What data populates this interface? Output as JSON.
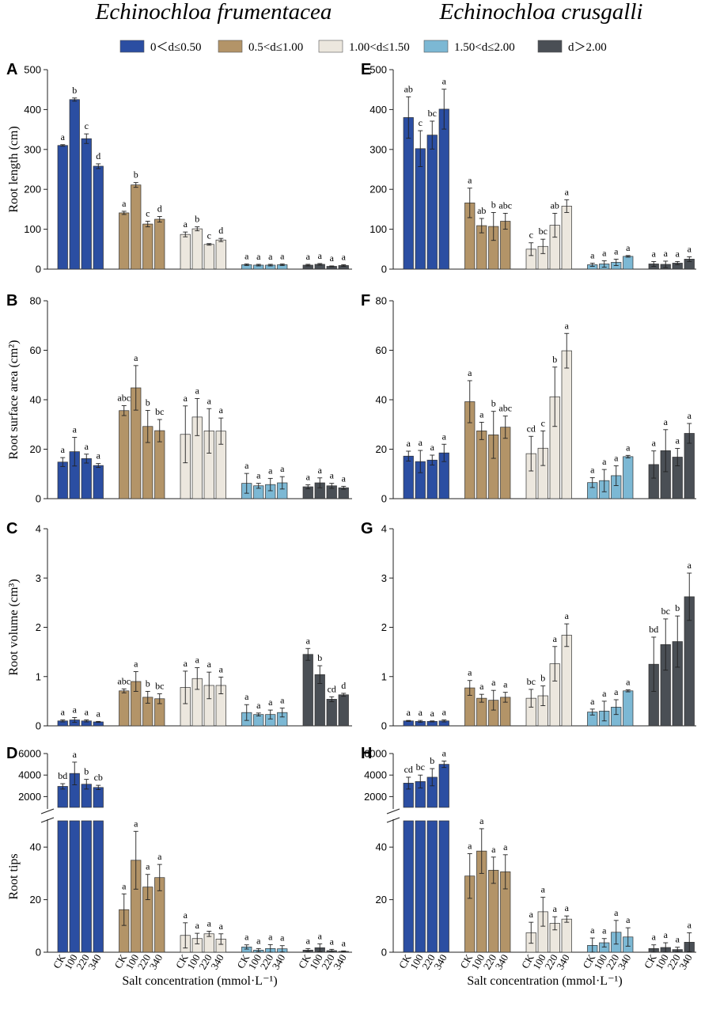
{
  "figure": {
    "species_titles": [
      "Echinochloa frumentacea",
      "Echinochloa crusgalli"
    ],
    "legend": {
      "placement": "top-center",
      "items": [
        {
          "label": "0＜d≤0.50",
          "color": "#2b4ea2"
        },
        {
          "label": "0.5<d≤1.00",
          "color": "#b39468"
        },
        {
          "label": "1.00<d≤1.50",
          "color": "#ece7de"
        },
        {
          "label": "1.50<d≤2.00",
          "color": "#7cb8d4"
        },
        {
          "label": "d＞2.00",
          "color": "#4a4f55"
        }
      ]
    },
    "categories": [
      "CK",
      "100",
      "220",
      "340"
    ],
    "xlabel": "Salt concentration (mmol·L⁻¹)"
  },
  "chart_data": [
    {
      "panel": "A",
      "type": "bar",
      "species": "Echinochloa frumentacea",
      "ylabel": "Root length (cm)",
      "ylim": [
        0,
        500
      ],
      "yticks": [
        0,
        100,
        200,
        300,
        400,
        500
      ],
      "series": [
        {
          "name": "0＜d≤0.50",
          "values": [
            310,
            425,
            327,
            258
          ],
          "errors": [
            2,
            4,
            12,
            6
          ],
          "letters": [
            "a",
            "b",
            "c",
            "d"
          ]
        },
        {
          "name": "0.5<d≤1.00",
          "values": [
            141,
            211,
            113,
            125
          ],
          "errors": [
            4,
            6,
            7,
            7
          ],
          "letters": [
            "a",
            "b",
            "c",
            "d"
          ]
        },
        {
          "name": "1.00<d≤1.50",
          "values": [
            87,
            101,
            62,
            73
          ],
          "errors": [
            6,
            5,
            2,
            4
          ],
          "letters": [
            "a",
            "b",
            "c",
            "d"
          ]
        },
        {
          "name": "1.50<d≤2.00",
          "values": [
            11,
            10,
            10,
            11
          ],
          "errors": [
            2,
            2,
            2,
            2
          ],
          "letters": [
            "a",
            "a",
            "a",
            "a"
          ]
        },
        {
          "name": "d＞2.00",
          "values": [
            10,
            12,
            7,
            9
          ],
          "errors": [
            2,
            2,
            1,
            2
          ],
          "letters": [
            "a",
            "a",
            "a",
            "a"
          ]
        }
      ]
    },
    {
      "panel": "E",
      "type": "bar",
      "species": "Echinochloa crusgalli",
      "ylabel": "",
      "ylim": [
        0,
        500
      ],
      "yticks": [
        0,
        100,
        200,
        300,
        400,
        500
      ],
      "series": [
        {
          "name": "0＜d≤0.50",
          "values": [
            380,
            302,
            336,
            401
          ],
          "errors": [
            52,
            45,
            35,
            50
          ],
          "letters": [
            "ab",
            "c",
            "bc",
            "a"
          ]
        },
        {
          "name": "0.5<d≤1.00",
          "values": [
            166,
            109,
            107,
            120
          ],
          "errors": [
            37,
            18,
            35,
            20
          ],
          "letters": [
            "a",
            "ab",
            "b",
            "abc"
          ]
        },
        {
          "name": "1.00<d≤1.50",
          "values": [
            50,
            57,
            110,
            158
          ],
          "errors": [
            16,
            18,
            30,
            16
          ],
          "letters": [
            "c",
            "bc",
            "ab",
            "a"
          ]
        },
        {
          "name": "1.50<d≤2.00",
          "values": [
            11,
            13,
            17,
            32
          ],
          "errors": [
            4,
            8,
            8,
            2
          ],
          "letters": [
            "a",
            "a",
            "a",
            "a"
          ]
        },
        {
          "name": "d＞2.00",
          "values": [
            13,
            12,
            15,
            25
          ],
          "errors": [
            6,
            8,
            4,
            6
          ],
          "letters": [
            "a",
            "a",
            "a",
            "a"
          ]
        }
      ]
    },
    {
      "panel": "B",
      "type": "bar",
      "species": "Echinochloa frumentacea",
      "ylabel": "Root surface area (cm²)",
      "ylim": [
        0,
        80
      ],
      "yticks": [
        0,
        20,
        40,
        60,
        80
      ],
      "series": [
        {
          "name": "0＜d≤0.50",
          "values": [
            14.8,
            19,
            16.2,
            13.4
          ],
          "errors": [
            1.8,
            5.8,
            1.8,
            0.8
          ],
          "letters": [
            "a",
            "a",
            "a",
            "a"
          ]
        },
        {
          "name": "0.5<d≤1.00",
          "values": [
            35.6,
            44.8,
            29.2,
            27.5
          ],
          "errors": [
            2,
            9,
            6.5,
            4.5
          ],
          "letters": [
            "abc",
            "a",
            "b",
            "bc"
          ]
        },
        {
          "name": "1.00<d≤1.50",
          "values": [
            26,
            33,
            27.4,
            27.3
          ],
          "errors": [
            11.5,
            7.5,
            9,
            5.3
          ],
          "letters": [
            "a",
            "a",
            "a",
            "a"
          ]
        },
        {
          "name": "1.50<d≤2.00",
          "values": [
            6.2,
            5.2,
            5.7,
            6.4
          ],
          "errors": [
            4,
            1,
            2.5,
            2.5
          ],
          "letters": [
            "a",
            "a",
            "a",
            "a"
          ]
        },
        {
          "name": "d＞2.00",
          "values": [
            4.8,
            6.4,
            5.2,
            4.4
          ],
          "errors": [
            0.8,
            2,
            1,
            0.6
          ],
          "letters": [
            "a",
            "a",
            "a",
            "a"
          ]
        }
      ]
    },
    {
      "panel": "F",
      "type": "bar",
      "species": "Echinochloa crusgalli",
      "ylabel": "",
      "ylim": [
        0,
        80
      ],
      "yticks": [
        0,
        20,
        40,
        60,
        80
      ],
      "series": [
        {
          "name": "0＜d≤0.50",
          "values": [
            17.2,
            15,
            15.6,
            18.5
          ],
          "errors": [
            2,
            4.5,
            2,
            3.5
          ],
          "letters": [
            "a",
            "a",
            "a",
            "a"
          ]
        },
        {
          "name": "0.5<d≤1.00",
          "values": [
            39.2,
            27.4,
            25.8,
            28.9
          ],
          "errors": [
            8.5,
            3.5,
            9.5,
            4.5
          ],
          "letters": [
            "a",
            "a",
            "b",
            "abc"
          ]
        },
        {
          "name": "1.00<d≤1.50",
          "values": [
            18.2,
            20.4,
            41.2,
            59.8
          ],
          "errors": [
            7,
            7,
            12,
            7
          ],
          "letters": [
            "cd",
            "c",
            "b",
            "a"
          ]
        },
        {
          "name": "1.50<d≤2.00",
          "values": [
            6.5,
            7.3,
            9.3,
            17
          ],
          "errors": [
            2,
            4.5,
            4,
            0.5
          ],
          "letters": [
            "a",
            "a",
            "a",
            "a"
          ]
        },
        {
          "name": "d＞2.00",
          "values": [
            13.8,
            19.4,
            16.8,
            26.4
          ],
          "errors": [
            5.5,
            8.5,
            3.5,
            4
          ],
          "letters": [
            "a",
            "a",
            "a",
            "a"
          ]
        }
      ]
    },
    {
      "panel": "C",
      "type": "bar",
      "species": "Echinochloa frumentacea",
      "ylabel": "Root volume (cm³)",
      "ylim": [
        0,
        4
      ],
      "yticks": [
        0,
        1,
        2,
        3,
        4
      ],
      "series": [
        {
          "name": "0＜d≤0.50",
          "values": [
            0.1,
            0.12,
            0.1,
            0.08
          ],
          "errors": [
            0.02,
            0.05,
            0.02,
            0.01
          ],
          "letters": [
            "a",
            "a",
            "a",
            "a"
          ]
        },
        {
          "name": "0.5<d≤1.00",
          "values": [
            0.71,
            0.9,
            0.58,
            0.55
          ],
          "errors": [
            0.04,
            0.2,
            0.12,
            0.1
          ],
          "letters": [
            "abc",
            "a",
            "b",
            "bc"
          ]
        },
        {
          "name": "1.00<d≤1.50",
          "values": [
            0.78,
            0.96,
            0.82,
            0.82
          ],
          "errors": [
            0.33,
            0.22,
            0.27,
            0.17
          ],
          "letters": [
            "a",
            "a",
            "a",
            "a"
          ]
        },
        {
          "name": "1.50<d≤2.00",
          "values": [
            0.27,
            0.23,
            0.23,
            0.27
          ],
          "errors": [
            0.16,
            0.03,
            0.09,
            0.09
          ],
          "letters": [
            "a",
            "a",
            "a",
            "a"
          ]
        },
        {
          "name": "d＞2.00",
          "values": [
            1.45,
            1.04,
            0.54,
            0.63
          ],
          "errors": [
            0.12,
            0.18,
            0.05,
            0.03
          ],
          "letters": [
            "a",
            "b",
            "cd",
            "d"
          ]
        }
      ]
    },
    {
      "panel": "G",
      "type": "bar",
      "species": "Echinochloa crusgalli",
      "ylabel": "",
      "ylim": [
        0,
        4
      ],
      "yticks": [
        0,
        1,
        2,
        3,
        4
      ],
      "series": [
        {
          "name": "0＜d≤0.50",
          "values": [
            0.1,
            0.09,
            0.09,
            0.1
          ],
          "errors": [
            0.01,
            0.02,
            0.01,
            0.02
          ],
          "letters": [
            "a",
            "a",
            "a",
            "a"
          ]
        },
        {
          "name": "0.5<d≤1.00",
          "values": [
            0.77,
            0.56,
            0.52,
            0.58
          ],
          "errors": [
            0.15,
            0.08,
            0.2,
            0.1
          ],
          "letters": [
            "a",
            "a",
            "a",
            "a"
          ]
        },
        {
          "name": "1.00<d≤1.50",
          "values": [
            0.56,
            0.61,
            1.26,
            1.84
          ],
          "errors": [
            0.18,
            0.2,
            0.35,
            0.23
          ],
          "letters": [
            "bc",
            "b",
            "a",
            "a"
          ]
        },
        {
          "name": "1.50<d≤2.00",
          "values": [
            0.28,
            0.3,
            0.38,
            0.71
          ],
          "errors": [
            0.06,
            0.2,
            0.15,
            0.02
          ],
          "letters": [
            "a",
            "a",
            "a",
            "a"
          ]
        },
        {
          "name": "d＞2.00",
          "values": [
            1.25,
            1.65,
            1.71,
            2.62
          ],
          "errors": [
            0.55,
            0.52,
            0.52,
            0.48
          ],
          "letters": [
            "bd",
            "bc",
            "b",
            "a"
          ]
        }
      ]
    },
    {
      "panel": "D",
      "type": "bar",
      "species": "Echinochloa frumentacea",
      "ylabel": "Root tips",
      "axis_break": true,
      "ylim_lower": [
        0,
        50
      ],
      "yticks_lower": [
        0,
        20,
        40
      ],
      "ylim_upper": [
        1000,
        6000
      ],
      "yticks_upper": [
        2000,
        4000,
        6000
      ],
      "series": [
        {
          "name": "0＜d≤0.50",
          "values": [
            2950,
            4150,
            3150,
            2850
          ],
          "errors": [
            250,
            1050,
            450,
            200
          ],
          "letters": [
            "bd",
            "a",
            "b",
            "cb"
          ]
        },
        {
          "name": "0.5<d≤1.00",
          "values": [
            16.2,
            35,
            24.8,
            28.4
          ],
          "errors": [
            6,
            11,
            4.8,
            5
          ],
          "letters": [
            "a",
            "a",
            "a",
            "a"
          ]
        },
        {
          "name": "1.00<d≤1.50",
          "values": [
            6.4,
            5.2,
            7,
            5
          ],
          "errors": [
            4.8,
            2,
            1,
            2
          ],
          "letters": [
            "a",
            "a",
            "a",
            "a"
          ]
        },
        {
          "name": "1.50<d≤2.00",
          "values": [
            2,
            0.8,
            1.4,
            1.3
          ],
          "errors": [
            0.8,
            0.6,
            1.5,
            1.2
          ],
          "letters": [
            "a",
            "a",
            "a",
            "a"
          ]
        },
        {
          "name": "d＞2.00",
          "values": [
            0.8,
            1.7,
            0.6,
            0.3
          ],
          "errors": [
            0.6,
            1.5,
            0.5,
            0.2
          ],
          "letters": [
            "a",
            "a",
            "a",
            "a"
          ]
        }
      ]
    },
    {
      "panel": "H",
      "type": "bar",
      "species": "Echinochloa crusgalli",
      "ylabel": "",
      "axis_break": true,
      "ylim_lower": [
        0,
        50
      ],
      "yticks_lower": [
        0,
        20,
        40
      ],
      "ylim_upper": [
        1000,
        6000
      ],
      "yticks_upper": [
        2000,
        4000,
        6000
      ],
      "series": [
        {
          "name": "0＜d≤0.50",
          "values": [
            3250,
            3400,
            3800,
            5000
          ],
          "errors": [
            550,
            600,
            800,
            300
          ],
          "letters": [
            "cd",
            "bc",
            "b",
            "a"
          ]
        },
        {
          "name": "0.5<d≤1.00",
          "values": [
            29,
            38.5,
            31.2,
            30.6
          ],
          "errors": [
            8.5,
            8.5,
            5,
            6.5
          ],
          "letters": [
            "a",
            "a",
            "a",
            "a"
          ]
        },
        {
          "name": "1.00<d≤1.50",
          "values": [
            7.4,
            15.4,
            11,
            12.6
          ],
          "errors": [
            4,
            5.5,
            2.5,
            1.2
          ],
          "letters": [
            "a",
            "a",
            "a",
            "a"
          ]
        },
        {
          "name": "1.50<d≤2.00",
          "values": [
            2.6,
            3.6,
            7.6,
            5.8
          ],
          "errors": [
            2.8,
            1.6,
            4.5,
            3.5
          ],
          "letters": [
            "a",
            "a",
            "a",
            "a"
          ]
        },
        {
          "name": "d＞2.00",
          "values": [
            1.4,
            1.8,
            1,
            3.8
          ],
          "errors": [
            1.4,
            1.8,
            0.9,
            3.6
          ],
          "letters": [
            "a",
            "a",
            "a",
            "a"
          ]
        }
      ]
    }
  ]
}
